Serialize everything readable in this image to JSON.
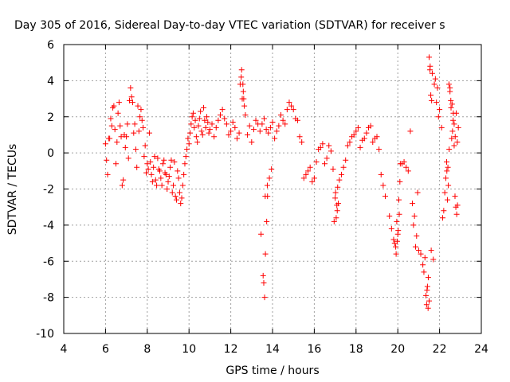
{
  "chart_data": {
    "type": "scatter",
    "title": "Day 305 of 2016, Sidereal Day-to-day VTEC variation (SDTVAR) for receiver s",
    "xlabel": "GPS time / hours",
    "ylabel": "SDTVAR / TECUs",
    "xlim": [
      4,
      24
    ],
    "ylim": [
      -10,
      6
    ],
    "xticks": [
      4,
      6,
      8,
      10,
      12,
      14,
      16,
      18,
      20,
      22,
      24
    ],
    "yticks": [
      -10,
      -8,
      -6,
      -4,
      -2,
      0,
      2,
      4,
      6
    ],
    "grid": true,
    "marker": "+",
    "color": "#ff0000",
    "x": [
      6.0,
      6.1,
      6.2,
      6.3,
      6.4,
      6.5,
      6.6,
      6.7,
      6.8,
      6.9,
      7.0,
      7.1,
      7.2,
      7.3,
      7.4,
      7.5,
      7.6,
      7.7,
      7.8,
      7.9,
      8.0,
      8.1,
      8.2,
      8.3,
      8.4,
      8.5,
      8.6,
      8.7,
      8.8,
      8.9,
      9.0,
      9.1,
      9.2,
      9.3,
      9.4,
      9.5,
      9.6,
      9.7,
      9.8,
      9.9,
      10.0,
      10.1,
      10.2,
      10.3,
      10.4,
      10.5,
      10.6,
      10.7,
      10.8,
      10.9,
      11.0,
      11.2,
      11.4,
      11.6,
      11.8,
      12.0,
      12.2,
      12.4,
      12.5,
      12.6,
      12.7,
      12.8,
      13.0,
      13.2,
      13.4,
      13.5,
      13.6,
      13.7,
      13.8,
      13.9,
      14.0,
      14.2,
      14.4,
      14.6,
      14.8,
      15.0,
      15.2,
      15.4,
      15.6,
      15.8,
      16.0,
      16.2,
      16.4,
      16.6,
      16.8,
      17.0,
      17.1,
      17.2,
      17.4,
      17.6,
      17.8,
      18.0,
      18.2,
      18.4,
      18.6,
      18.8,
      19.0,
      19.2,
      19.4,
      19.6,
      19.8,
      19.9,
      20.0,
      20.1,
      20.3,
      20.5,
      20.7,
      20.8,
      20.9,
      21.0,
      21.2,
      21.3,
      21.4,
      21.5,
      21.6,
      21.7,
      21.8,
      21.9,
      22.0,
      22.1,
      22.2,
      22.3,
      22.4,
      22.5,
      22.6,
      22.7,
      22.8,
      22.9,
      6.05,
      6.15,
      6.25,
      6.35,
      6.45,
      6.55,
      6.65,
      6.75,
      6.85,
      6.95,
      7.05,
      7.15,
      7.25,
      7.35,
      7.45,
      7.55,
      7.65,
      7.75,
      7.85,
      7.95,
      8.05,
      8.15,
      8.25,
      8.35,
      8.45,
      8.55,
      8.65,
      8.75,
      8.85,
      8.95,
      9.05,
      9.15,
      9.25,
      9.35,
      9.45,
      9.55,
      9.65,
      9.75,
      9.85,
      9.95,
      10.05,
      10.15,
      10.25,
      10.35,
      10.45,
      10.55,
      10.65,
      10.75,
      10.85,
      10.95,
      11.1,
      11.3,
      11.5,
      11.7,
      11.9,
      12.1,
      12.3,
      12.45,
      12.55,
      12.65,
      12.9,
      13.1,
      13.3,
      13.45,
      13.55,
      13.65,
      13.75,
      13.85,
      13.95,
      14.1,
      14.3,
      14.5,
      14.7,
      14.9,
      15.1,
      15.3,
      15.5,
      15.7,
      15.9,
      16.1,
      16.3,
      16.5,
      16.7,
      16.9,
      17.05,
      17.15,
      17.3,
      17.5,
      17.7,
      17.9,
      18.1,
      18.3,
      18.5,
      18.7,
      18.9,
      19.1,
      19.3,
      19.7,
      19.85,
      19.95,
      20.05,
      20.2,
      20.4,
      20.6,
      20.75,
      20.85,
      20.95,
      21.1,
      21.25,
      21.35,
      21.45,
      21.55,
      21.65,
      21.75,
      21.85,
      21.95,
      22.15,
      22.25,
      22.35,
      22.45,
      22.55,
      22.65,
      22.75,
      22.85,
      13.58,
      13.62,
      13.66,
      13.72,
      13.76,
      21.38,
      21.42,
      21.46,
      21.5,
      21.54,
      21.58,
      21.62,
      12.52,
      12.58,
      12.62,
      16.95,
      17.02,
      17.08,
      17.12,
      19.92,
      19.97,
      20.02,
      20.07,
      20.12,
      22.7,
      22.74,
      22.78,
      22.82,
      22.86,
      22.66,
      22.62,
      22.58,
      22.54,
      22.5,
      22.46,
      22.42,
      22.38,
      22.34
    ],
    "y": [
      0.5,
      -1.2,
      0.8,
      1.5,
      2.6,
      -0.6,
      2.2,
      1.5,
      -1.8,
      1.0,
      0.9,
      -0.3,
      3.6,
      2.8,
      1.6,
      -0.8,
      1.2,
      2.4,
      1.4,
      0.4,
      -0.6,
      1.1,
      -1.2,
      -0.8,
      -1.5,
      -0.3,
      -1.0,
      -1.8,
      -0.4,
      -1.2,
      -1.6,
      -0.8,
      -2.2,
      -0.5,
      -2.6,
      -1.4,
      -2.8,
      -1.8,
      -0.6,
      0.2,
      0.5,
      1.6,
      2.2,
      1.8,
      0.6,
      1.9,
      1.2,
      2.5,
      1.4,
      1.7,
      1.3,
      0.9,
      1.8,
      2.4,
      1.6,
      1.2,
      1.4,
      1.1,
      4.2,
      3.4,
      2.1,
      1.0,
      0.6,
      1.8,
      1.2,
      1.6,
      1.9,
      1.3,
      1.1,
      1.4,
      1.7,
      1.2,
      2.1,
      1.6,
      2.8,
      2.4,
      1.8,
      0.6,
      -1.2,
      -0.8,
      -1.4,
      0.2,
      0.5,
      -0.3,
      0.1,
      -2.5,
      -3.2,
      -1.5,
      -0.8,
      0.4,
      0.9,
      1.2,
      0.3,
      0.8,
      1.4,
      0.6,
      0.9,
      -1.2,
      -2.4,
      -3.5,
      -4.8,
      -5.2,
      -4.5,
      -1.6,
      -0.5,
      -1.0,
      -2.8,
      -3.5,
      -4.6,
      -5.4,
      -6.2,
      -5.8,
      -7.6,
      -8.2,
      -5.4,
      -5.9,
      4.1,
      3.6,
      2.4,
      1.4,
      -3.2,
      -1.4,
      -0.8,
      3.4,
      2.7,
      1.6,
      2.2,
      1.4,
      -0.4,
      0.8,
      1.9,
      2.5,
      1.3,
      0.6,
      2.8,
      0.9,
      -1.5,
      0.3,
      1.6,
      2.9,
      3.1,
      1.1,
      0.2,
      2.6,
      2.0,
      1.8,
      -0.2,
      -1.1,
      -0.9,
      -0.5,
      -1.6,
      -0.2,
      -1.8,
      -0.9,
      -1.4,
      -0.6,
      -1.1,
      -2.0,
      -1.3,
      -0.4,
      -1.8,
      -2.4,
      -1.0,
      -2.2,
      -2.5,
      -1.2,
      -0.2,
      0.8,
      1.1,
      2.0,
      1.4,
      0.9,
      1.5,
      2.3,
      1.0,
      1.8,
      2.0,
      1.1,
      1.6,
      1.4,
      2.1,
      1.9,
      1.0,
      1.7,
      0.8,
      3.8,
      3.0,
      2.6,
      1.5,
      1.3,
      1.6,
      -4.5,
      -6.8,
      -2.4,
      -1.8,
      -1.4,
      -0.9,
      0.8,
      1.5,
      1.8,
      2.4,
      2.6,
      1.9,
      0.9,
      -1.4,
      -1.0,
      -1.6,
      -0.5,
      0.3,
      -0.6,
      0.4,
      -0.9,
      -3.6,
      -2.8,
      -1.2,
      -0.4,
      0.6,
      1.0,
      1.4,
      0.7,
      1.1,
      1.5,
      0.8,
      0.2,
      -1.8,
      -4.2,
      -5.0,
      -3.8,
      -2.6,
      -0.6,
      -0.8,
      1.2,
      -4.0,
      -5.2,
      -2.2,
      -5.6,
      -6.6,
      -7.9,
      -8.6,
      4.8,
      4.4,
      3.8,
      2.8,
      2.0,
      -3.6,
      -2.2,
      -1.0,
      3.8,
      2.5,
      1.8,
      0.9,
      0.6,
      -7.2,
      -8.0,
      -5.6,
      -3.8,
      -2.4,
      -8.4,
      -7.4,
      -6.9,
      5.3,
      4.6,
      3.2,
      2.9,
      4.6,
      3.8,
      3.0,
      -3.8,
      -2.2,
      -2.9,
      -1.9,
      -5.6,
      -4.9,
      -4.3,
      -3.4,
      -0.6,
      0.4,
      -2.4,
      -3.0,
      -3.4,
      -2.9,
      2.2,
      1.2,
      0.8,
      2.9,
      3.6,
      0.2,
      -1.8,
      -2.6,
      -0.5
    ]
  }
}
